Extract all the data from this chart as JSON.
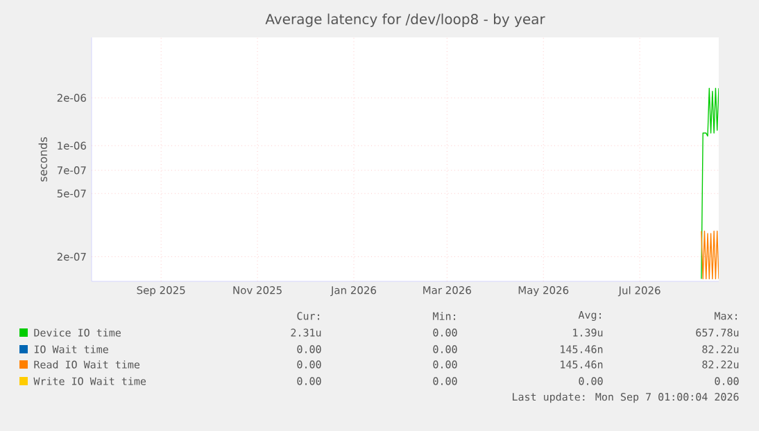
{
  "chart_data": {
    "type": "line",
    "title": "Average latency for /dev/loop8 - by year",
    "ylabel": "seconds",
    "log": true,
    "grid": true,
    "legend": "bottom",
    "xlim": [
      "2025-07-19",
      "2026-08-20"
    ],
    "xticks": [
      {
        "value": "2025-09-01",
        "label": "Sep 2025"
      },
      {
        "value": "2025-11-01",
        "label": "Nov 2025"
      },
      {
        "value": "2026-01-01",
        "label": "Jan 2026"
      },
      {
        "value": "2026-03-01",
        "label": "Mar 2026"
      },
      {
        "value": "2026-05-01",
        "label": "May 2026"
      },
      {
        "value": "2026-07-01",
        "label": "Jul 2026"
      }
    ],
    "ylim": [
      1.4e-07,
      4.8e-06
    ],
    "yticks": [
      {
        "value": 2e-07,
        "label": "2e-07"
      },
      {
        "value": 5e-07,
        "label": "5e-07"
      },
      {
        "value": 7e-07,
        "label": "7e-07"
      },
      {
        "value": 1e-06,
        "label": "1e-06"
      },
      {
        "value": 2e-06,
        "label": "2e-06"
      }
    ],
    "series": [
      {
        "name": "Device IO time",
        "color": "#00cc00",
        "x": [
          "2026-08-09",
          "2026-08-10",
          "2026-08-12",
          "2026-08-13",
          "2026-08-14",
          "2026-08-15",
          "2026-08-16",
          "2026-08-17",
          "2026-08-18",
          "2026-08-19",
          "2026-08-20"
        ],
        "values": [
          1.45e-07,
          1.2e-06,
          1.2e-06,
          1.15e-06,
          2.3e-06,
          1.2e-06,
          2.2e-06,
          1.2e-06,
          2.3e-06,
          1.25e-06,
          2.3e-06
        ]
      },
      {
        "name": "IO Wait time",
        "color": "#0066b3"
      },
      {
        "name": "Read IO Wait time",
        "color": "#ff8000",
        "x": [
          "2026-08-09",
          "2026-08-10",
          "2026-08-11",
          "2026-08-12",
          "2026-08-13",
          "2026-08-14",
          "2026-08-15",
          "2026-08-16",
          "2026-08-17",
          "2026-08-18",
          "2026-08-19",
          "2026-08-20"
        ],
        "values": [
          2.9e-07,
          1.45e-07,
          2.9e-07,
          1.45e-07,
          2.8e-07,
          1.45e-07,
          2.8e-07,
          1.45e-07,
          2.9e-07,
          1.45e-07,
          2.9e-07,
          1.45e-07
        ]
      },
      {
        "name": "Write IO Wait time",
        "color": "#ffcc00"
      }
    ],
    "annotations": [
      "Cur:",
      "Min:",
      "Avg:",
      "Max:",
      "2.31u",
      "0.00",
      "1.39u",
      "657.78u",
      "0.00",
      "0.00",
      "145.46n",
      "82.22u",
      "0.00",
      "0.00",
      "145.46n",
      "82.22u",
      "0.00",
      "0.00",
      "0.00",
      "0.00",
      "Last update: Mon Sep  7 01:00:04 2026"
    ]
  }
}
